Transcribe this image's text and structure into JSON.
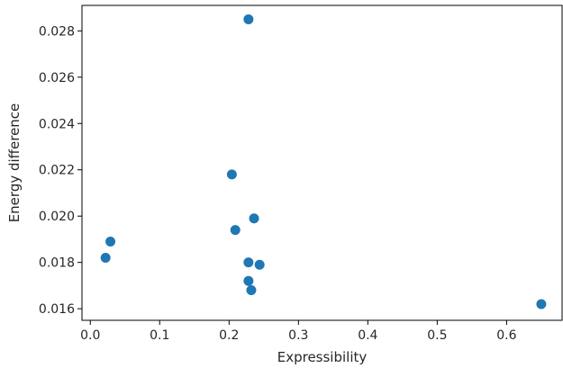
{
  "chart_data": {
    "type": "scatter",
    "title": "",
    "xlabel": "Expressibility",
    "ylabel": "Energy difference",
    "xlim": [
      -0.012,
      0.68
    ],
    "ylim": [
      0.0155,
      0.0291
    ],
    "xticks": [
      0.0,
      0.1,
      0.2,
      0.3,
      0.4,
      0.5,
      0.6
    ],
    "xtick_labels": [
      "0.0",
      "0.1",
      "0.2",
      "0.3",
      "0.4",
      "0.5",
      "0.6"
    ],
    "yticks": [
      0.016,
      0.018,
      0.02,
      0.022,
      0.024,
      0.026,
      0.028
    ],
    "ytick_labels": [
      "0.016",
      "0.018",
      "0.020",
      "0.022",
      "0.024",
      "0.026",
      "0.028"
    ],
    "grid": false,
    "marker_color": "#1f77b4",
    "series": [
      {
        "x": [
          0.228,
          0.204,
          0.236,
          0.209,
          0.029,
          0.022,
          0.228,
          0.244,
          0.228,
          0.232,
          0.65
        ],
        "y": [
          0.0285,
          0.0218,
          0.0199,
          0.0194,
          0.0189,
          0.0182,
          0.018,
          0.0179,
          0.0172,
          0.0168,
          0.0162
        ]
      }
    ]
  }
}
